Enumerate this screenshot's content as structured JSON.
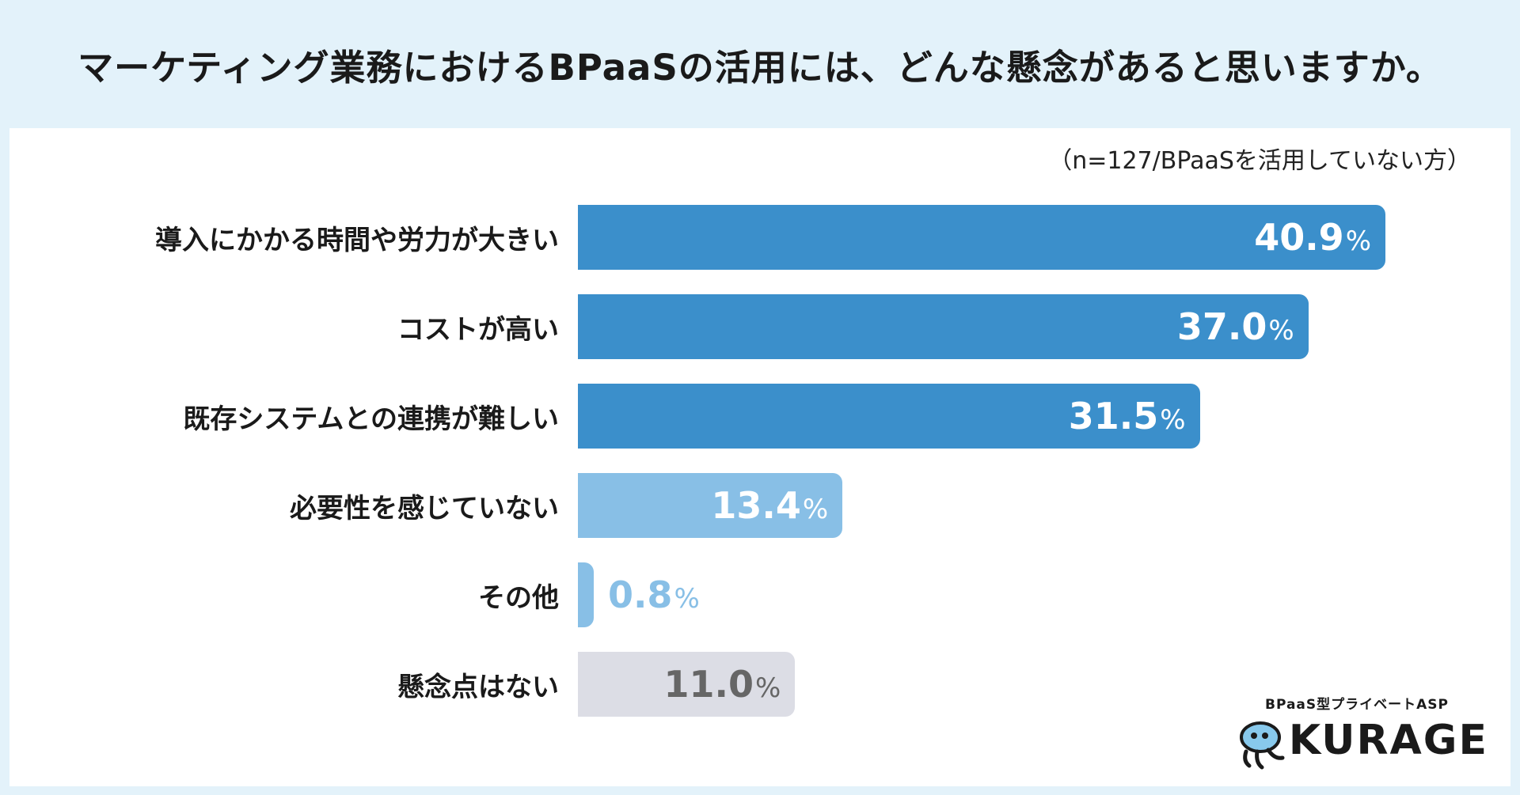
{
  "title": "マーケティング業務におけるBPaaSの活用には、どんな懸念があると思いますか。",
  "sample_note": "（n=127/BPaaSを活用していない方）",
  "brand": {
    "tagline": "BPaaS型プライベートASP",
    "name": "KURAGE"
  },
  "colors": {
    "dark_blue": "#3b8fcb",
    "light_blue": "#88bfe6",
    "gray": "#dcdde5",
    "background": "#e3f2fa"
  },
  "chart_data": {
    "type": "bar",
    "orientation": "horizontal",
    "unit": "%",
    "categories": [
      "導入にかかる時間や労力が大きい",
      "コストが高い",
      "既存システムとの連携が難しい",
      "必要性を感じていない",
      "その他",
      "懸念点はない"
    ],
    "values": [
      40.9,
      37.0,
      31.5,
      13.4,
      0.8,
      11.0
    ],
    "value_labels": [
      "40.9",
      "37.0",
      "31.5",
      "13.4",
      "0.8",
      "11.0"
    ],
    "bar_colors": [
      "#3b8fcb",
      "#3b8fcb",
      "#3b8fcb",
      "#88bfe6",
      "#88bfe6",
      "#dcdde5"
    ],
    "label_colors": [
      "#ffffff",
      "#ffffff",
      "#ffffff",
      "#ffffff",
      "#88bfe6",
      "#666666"
    ],
    "xlim": [
      0,
      45
    ],
    "grid": false,
    "legend": "none"
  }
}
